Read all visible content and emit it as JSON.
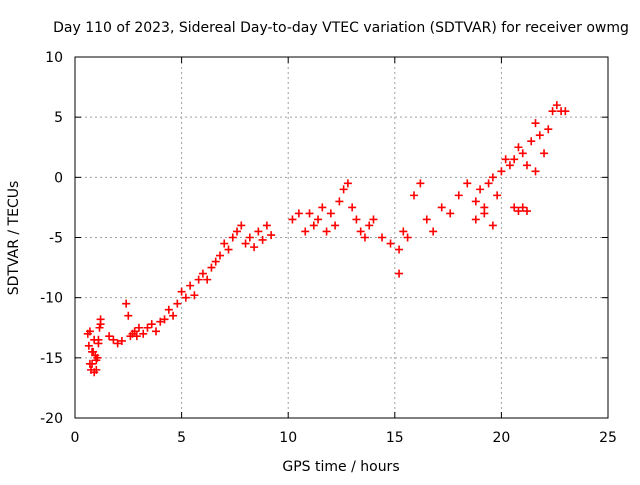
{
  "chart_data": {
    "type": "scatter",
    "title": "Day 110 of 2023, Sidereal Day-to-day VTEC variation (SDTVAR) for receiver owmg",
    "xlabel": "GPS time / hours",
    "ylabel": "SDTVAR / TECUs",
    "xlim": [
      0,
      25
    ],
    "ylim": [
      -20,
      10
    ],
    "x_ticks": [
      0,
      5,
      10,
      15,
      20,
      25
    ],
    "y_ticks": [
      -20,
      -15,
      -10,
      -5,
      0,
      5,
      10
    ],
    "grid": true,
    "marker": "+",
    "series": [
      {
        "name": "SDTVAR",
        "color": "#ff0000",
        "x": [
          0.6,
          0.65,
          0.7,
          0.75,
          0.8,
          0.85,
          0.9,
          0.95,
          1.0,
          1.05,
          1.1,
          1.15,
          1.2,
          0.7,
          0.8,
          0.9,
          1.0,
          1.1,
          1.2,
          1.6,
          1.8,
          2.0,
          2.2,
          2.4,
          2.5,
          2.6,
          2.7,
          2.8,
          2.9,
          3.0,
          3.2,
          3.4,
          3.6,
          3.8,
          4.0,
          4.2,
          4.4,
          4.6,
          4.8,
          5.0,
          5.2,
          5.4,
          5.6,
          5.8,
          6.0,
          6.2,
          6.4,
          6.6,
          6.8,
          7.0,
          7.2,
          7.4,
          7.6,
          7.8,
          8.0,
          8.2,
          8.4,
          8.6,
          8.8,
          9.0,
          9.2,
          10.2,
          10.5,
          10.8,
          11.0,
          11.2,
          11.4,
          11.6,
          11.8,
          12.0,
          12.2,
          12.4,
          12.6,
          12.8,
          13.0,
          13.2,
          13.4,
          13.6,
          13.8,
          14.0,
          14.4,
          14.8,
          15.2,
          15.4,
          15.6,
          15.9,
          16.2,
          16.5,
          16.8,
          17.2,
          17.6,
          18.0,
          18.4,
          18.8,
          19.0,
          19.2,
          19.4,
          19.6,
          19.8,
          20.0,
          20.2,
          20.4,
          20.6,
          20.8,
          21.0,
          21.2,
          21.4,
          21.6,
          21.8,
          22.0,
          22.2,
          22.4,
          22.6,
          22.8,
          23.0,
          15.2,
          21.0,
          21.2,
          21.6,
          18.8,
          19.2,
          19.6,
          20.6,
          20.8
        ],
        "y": [
          -13.0,
          -14.0,
          -15.5,
          -16.0,
          -15.5,
          -14.5,
          -13.5,
          -14.8,
          -16.0,
          -15.0,
          -13.5,
          -12.5,
          -11.8,
          -12.8,
          -14.5,
          -16.2,
          -15.2,
          -13.8,
          -12.2,
          -13.2,
          -13.5,
          -13.8,
          -13.6,
          -10.5,
          -11.5,
          -13.2,
          -13.0,
          -12.8,
          -13.2,
          -12.5,
          -13.0,
          -12.5,
          -12.2,
          -12.8,
          -12.0,
          -11.8,
          -11.0,
          -11.5,
          -10.5,
          -9.5,
          -10.0,
          -9.0,
          -9.8,
          -8.5,
          -8.0,
          -8.5,
          -7.5,
          -7.0,
          -6.5,
          -5.5,
          -6.0,
          -5.0,
          -4.5,
          -4.0,
          -5.5,
          -5.0,
          -5.8,
          -4.5,
          -5.2,
          -4.0,
          -4.8,
          -3.5,
          -3.0,
          -4.5,
          -3.0,
          -4.0,
          -3.5,
          -2.5,
          -4.5,
          -3.0,
          -4.0,
          -2.0,
          -1.0,
          -0.5,
          -2.5,
          -3.5,
          -4.5,
          -5.0,
          -4.0,
          -3.5,
          -5.0,
          -5.5,
          -6.0,
          -4.5,
          -5.0,
          -1.5,
          -0.5,
          -3.5,
          -4.5,
          -2.5,
          -3.0,
          -1.5,
          -0.5,
          -2.0,
          -1.0,
          -2.5,
          -0.5,
          0.0,
          -1.5,
          0.5,
          1.5,
          1.0,
          1.5,
          2.5,
          2.0,
          1.0,
          3.0,
          4.5,
          3.5,
          2.0,
          4.0,
          5.5,
          6.0,
          5.5,
          5.5,
          -8.0,
          -2.5,
          -2.8,
          0.5,
          -3.5,
          -3.0,
          -4.0,
          -2.5,
          -2.8
        ]
      }
    ]
  }
}
